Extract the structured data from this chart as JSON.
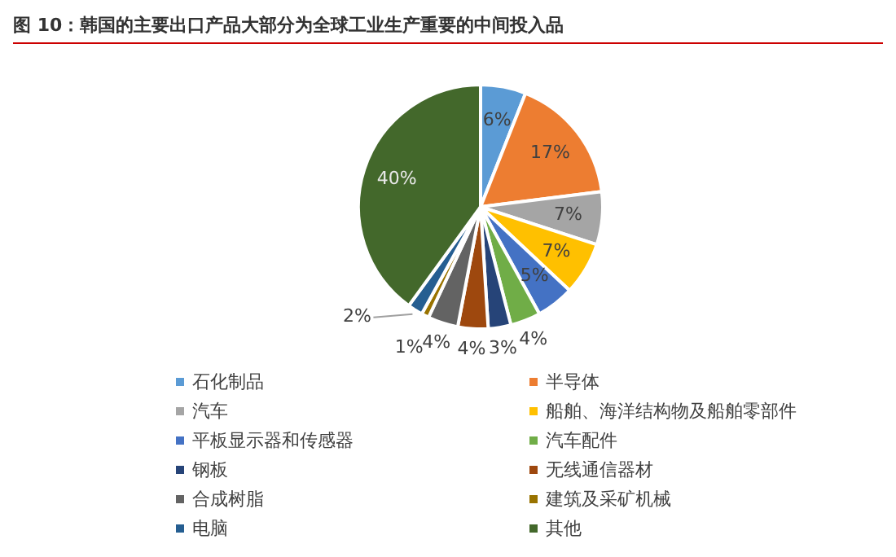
{
  "chart_data": {
    "type": "pie",
    "title": "图 10：韩国的主要出口产品大部分为全球工业生产重要的中间投入品",
    "categories": [
      "石化制品",
      "半导体",
      "汽车",
      "船舶、海洋结构物及船舶零部件",
      "平板显示器和传感器",
      "汽车配件",
      "钢板",
      "无线通信器材",
      "合成树脂",
      "建筑及采矿机械",
      "电脑",
      "其他"
    ],
    "values": [
      6,
      17,
      7,
      7,
      5,
      4,
      3,
      4,
      4,
      1,
      2,
      40
    ],
    "value_labels": [
      "6%",
      "17%",
      "7%",
      "7%",
      "5%",
      "4%",
      "3%",
      "4%",
      "4%",
      "1%",
      "2%",
      "40%"
    ],
    "colors": [
      "#5b9bd5",
      "#ed7d31",
      "#a5a5a5",
      "#ffc000",
      "#4472c4",
      "#70ad47",
      "#264478",
      "#9e480e",
      "#636363",
      "#997300",
      "#255e91",
      "#43682b"
    ],
    "legend": "bottom"
  }
}
